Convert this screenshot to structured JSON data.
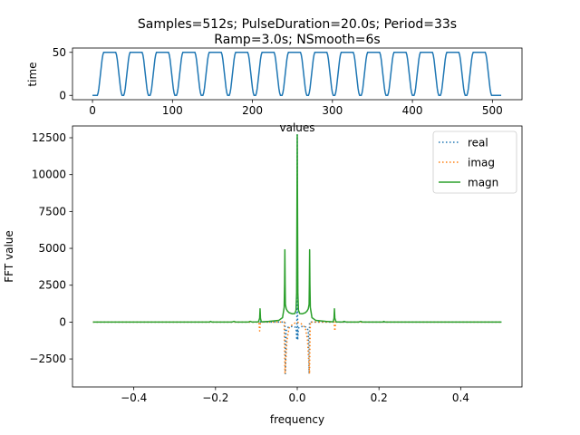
{
  "title_line1": "Samples=512s; PulseDuration=20.0s; Period=33s",
  "title_line2": "Ramp=3.0s; NSmooth=6s",
  "chart_data": [
    {
      "type": "line",
      "title": "",
      "xlabel": "values",
      "ylabel": "time",
      "xlim": [
        -25,
        537
      ],
      "ylim": [
        -5,
        55
      ],
      "xticks": [
        "0",
        "100",
        "200",
        "300",
        "400",
        "500"
      ],
      "yticks": [
        "0",
        "50"
      ],
      "pulse": {
        "samples": 512,
        "pulse_duration": 20.0,
        "period": 33,
        "ramp": 3.0,
        "smooth": 6,
        "amplitude": 50,
        "first_rise": 8
      },
      "series": [
        {
          "color": "#1f77b4",
          "style": "solid"
        }
      ]
    },
    {
      "type": "line",
      "title": "",
      "xlabel": "frequency",
      "ylabel": "FFT value",
      "xlim": [
        -0.55,
        0.55
      ],
      "ylim": [
        -4400,
        13300
      ],
      "xticks": [
        "−0.4",
        "−0.2",
        "0.0",
        "0.2",
        "0.4"
      ],
      "yticks": [
        "−2500",
        "0",
        "2500",
        "5000",
        "7500",
        "10000",
        "12500"
      ],
      "legend_position": "top-right",
      "series": [
        {
          "name": "real",
          "color": "#1f77b4",
          "style": "dotted",
          "points": [
            [
              -0.5,
              0
            ],
            [
              -0.03,
              0
            ],
            [
              -0.029,
              -3500
            ],
            [
              -0.027,
              -600
            ],
            [
              -0.024,
              -380
            ],
            [
              -0.02,
              -320
            ],
            [
              -0.012,
              -300
            ],
            [
              -0.006,
              -320
            ],
            [
              -0.003,
              -420
            ],
            [
              -0.001,
              -1200
            ],
            [
              0,
              12700
            ],
            [
              0.001,
              -1200
            ],
            [
              0.003,
              -420
            ],
            [
              0.006,
              -320
            ],
            [
              0.012,
              -300
            ],
            [
              0.02,
              -320
            ],
            [
              0.024,
              -380
            ],
            [
              0.027,
              -600
            ],
            [
              0.029,
              -3500
            ],
            [
              0.03,
              0
            ],
            [
              0.5,
              0
            ]
          ]
        },
        {
          "name": "imag",
          "color": "#ff7f0e",
          "style": "dotted",
          "points": [
            [
              -0.5,
              0
            ],
            [
              -0.094,
              0
            ],
            [
              -0.092,
              -600
            ],
            [
              -0.09,
              0
            ],
            [
              -0.032,
              0
            ],
            [
              -0.03,
              -3500
            ],
            [
              -0.025,
              -1200
            ],
            [
              -0.02,
              -400
            ],
            [
              -0.01,
              -120
            ],
            [
              0,
              0
            ],
            [
              0.01,
              -120
            ],
            [
              0.02,
              -400
            ],
            [
              0.025,
              -1200
            ],
            [
              0.03,
              -3500
            ],
            [
              0.032,
              0
            ],
            [
              0.09,
              0
            ],
            [
              0.092,
              -600
            ],
            [
              0.094,
              0
            ],
            [
              0.5,
              0
            ]
          ]
        },
        {
          "name": "magn",
          "color": "#2ca02c",
          "style": "solid",
          "points": [
            [
              -0.5,
              0
            ],
            [
              -0.215,
              0
            ],
            [
              -0.212,
              50
            ],
            [
              -0.209,
              0
            ],
            [
              -0.16,
              0
            ],
            [
              -0.155,
              50
            ],
            [
              -0.15,
              0
            ],
            [
              -0.12,
              0
            ],
            [
              -0.115,
              50
            ],
            [
              -0.11,
              0
            ],
            [
              -0.095,
              20
            ],
            [
              -0.092,
              260
            ],
            [
              -0.091,
              900
            ],
            [
              -0.09,
              260
            ],
            [
              -0.088,
              20
            ],
            [
              -0.07,
              50
            ],
            [
              -0.045,
              120
            ],
            [
              -0.036,
              300
            ],
            [
              -0.032,
              1000
            ],
            [
              -0.031,
              2600
            ],
            [
              -0.0303,
              4900
            ],
            [
              -0.0296,
              2600
            ],
            [
              -0.029,
              1200
            ],
            [
              -0.027,
              900
            ],
            [
              -0.024,
              750
            ],
            [
              -0.02,
              640
            ],
            [
              -0.012,
              560
            ],
            [
              -0.006,
              580
            ],
            [
              -0.003,
              800
            ],
            [
              -0.0015,
              2000
            ],
            [
              0,
              12700
            ],
            [
              0.0015,
              2000
            ],
            [
              0.003,
              800
            ],
            [
              0.006,
              580
            ],
            [
              0.012,
              560
            ],
            [
              0.02,
              640
            ],
            [
              0.024,
              750
            ],
            [
              0.027,
              900
            ],
            [
              0.029,
              1200
            ],
            [
              0.0296,
              2600
            ],
            [
              0.0303,
              4900
            ],
            [
              0.031,
              2600
            ],
            [
              0.032,
              1000
            ],
            [
              0.036,
              300
            ],
            [
              0.045,
              120
            ],
            [
              0.07,
              50
            ],
            [
              0.088,
              20
            ],
            [
              0.09,
              260
            ],
            [
              0.091,
              900
            ],
            [
              0.092,
              260
            ],
            [
              0.095,
              20
            ],
            [
              0.11,
              0
            ],
            [
              0.115,
              50
            ],
            [
              0.12,
              0
            ],
            [
              0.15,
              0
            ],
            [
              0.155,
              50
            ],
            [
              0.16,
              0
            ],
            [
              0.209,
              0
            ],
            [
              0.212,
              50
            ],
            [
              0.215,
              0
            ],
            [
              0.5,
              0
            ]
          ]
        }
      ]
    }
  ]
}
